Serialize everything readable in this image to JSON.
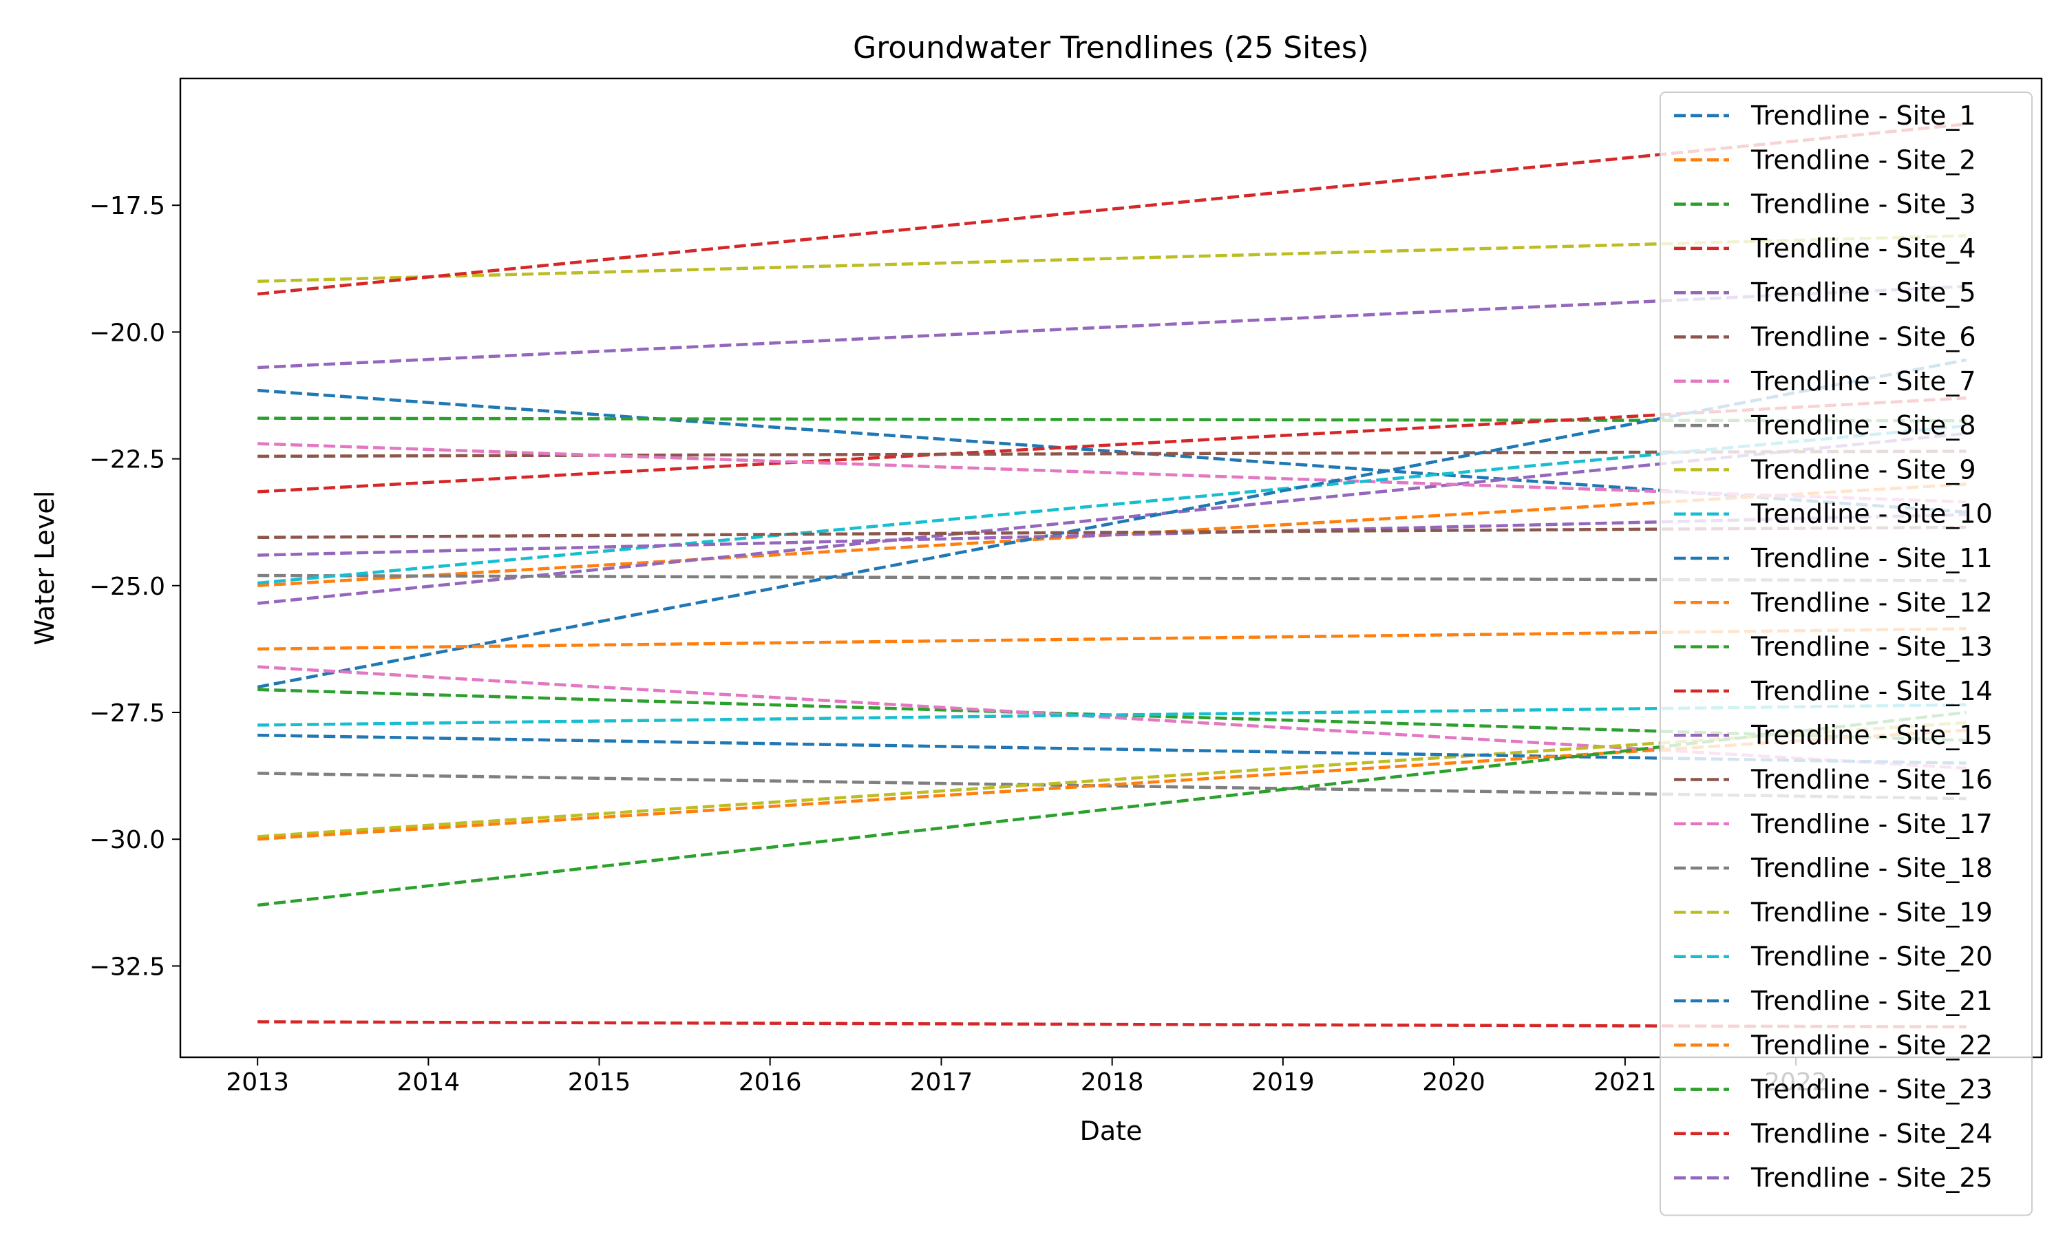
{
  "chart_data": {
    "type": "line",
    "title": "Groundwater Trendlines (25 Sites)",
    "xlabel": "Date",
    "ylabel": "Water Level",
    "x": [
      "2013-01-01",
      "2022-12-31"
    ],
    "x_ticks": [
      "2013",
      "2014",
      "2015",
      "2016",
      "2017",
      "2018",
      "2019",
      "2020",
      "2021",
      "2022"
    ],
    "xlim": [
      "2012-07-20",
      "2023-06-10"
    ],
    "y_ticks": [
      "−17.5",
      "−20.0",
      "−22.5",
      "−25.0",
      "−27.5",
      "−30.0",
      "−32.5"
    ],
    "ylim": [
      -34.3,
      -15.0
    ],
    "line_style": "dashed",
    "grid": false,
    "legend_position": "top-right",
    "series": [
      {
        "name": "Trendline - Site_1",
        "color": "#1f77b4",
        "values": [
          -21.15,
          -23.55
        ]
      },
      {
        "name": "Trendline - Site_2",
        "color": "#ff7f0e",
        "values": [
          -25.0,
          -23.0
        ]
      },
      {
        "name": "Trendline - Site_3",
        "color": "#2ca02c",
        "values": [
          -21.7,
          -21.75
        ]
      },
      {
        "name": "Trendline - Site_4",
        "color": "#d62728",
        "values": [
          -23.15,
          -21.3
        ]
      },
      {
        "name": "Trendline - Site_5",
        "color": "#9467bd",
        "values": [
          -25.35,
          -22.0
        ]
      },
      {
        "name": "Trendline - Site_6",
        "color": "#8c564b",
        "values": [
          -22.45,
          -22.35
        ]
      },
      {
        "name": "Trendline - Site_7",
        "color": "#e377c2",
        "values": [
          -22.2,
          -23.35
        ]
      },
      {
        "name": "Trendline - Site_8",
        "color": "#7f7f7f",
        "values": [
          -24.8,
          -24.9
        ]
      },
      {
        "name": "Trendline - Site_9",
        "color": "#bcbd22",
        "values": [
          -19.0,
          -18.1
        ]
      },
      {
        "name": "Trendline - Site_10",
        "color": "#17becf",
        "values": [
          -24.95,
          -21.85
        ]
      },
      {
        "name": "Trendline - Site_11",
        "color": "#1f77b4",
        "values": [
          -27.0,
          -20.55
        ]
      },
      {
        "name": "Trendline - Site_12",
        "color": "#ff7f0e",
        "values": [
          -26.25,
          -25.85
        ]
      },
      {
        "name": "Trendline - Site_13",
        "color": "#2ca02c",
        "values": [
          -27.05,
          -28.05
        ]
      },
      {
        "name": "Trendline - Site_14",
        "color": "#d62728",
        "values": [
          -19.25,
          -15.9
        ]
      },
      {
        "name": "Trendline - Site_15",
        "color": "#9467bd",
        "values": [
          -24.4,
          -23.6
        ]
      },
      {
        "name": "Trendline - Site_16",
        "color": "#8c564b",
        "values": [
          -24.05,
          -23.85
        ]
      },
      {
        "name": "Trendline - Site_17",
        "color": "#e377c2",
        "values": [
          -26.6,
          -28.6
        ]
      },
      {
        "name": "Trendline - Site_18",
        "color": "#7f7f7f",
        "values": [
          -28.7,
          -29.2
        ]
      },
      {
        "name": "Trendline - Site_19",
        "color": "#bcbd22",
        "values": [
          -29.95,
          -27.7
        ]
      },
      {
        "name": "Trendline - Site_20",
        "color": "#17becf",
        "values": [
          -27.75,
          -27.35
        ]
      },
      {
        "name": "Trendline - Site_21",
        "color": "#1f77b4",
        "values": [
          -27.95,
          -28.5
        ]
      },
      {
        "name": "Trendline - Site_22",
        "color": "#ff7f0e",
        "values": [
          -30.0,
          -27.85
        ]
      },
      {
        "name": "Trendline - Site_23",
        "color": "#2ca02c",
        "values": [
          -31.3,
          -27.5
        ]
      },
      {
        "name": "Trendline - Site_24",
        "color": "#d62728",
        "values": [
          -33.6,
          -33.7
        ]
      },
      {
        "name": "Trendline - Site_25",
        "color": "#9467bd",
        "values": [
          -20.7,
          -19.1
        ]
      }
    ]
  }
}
